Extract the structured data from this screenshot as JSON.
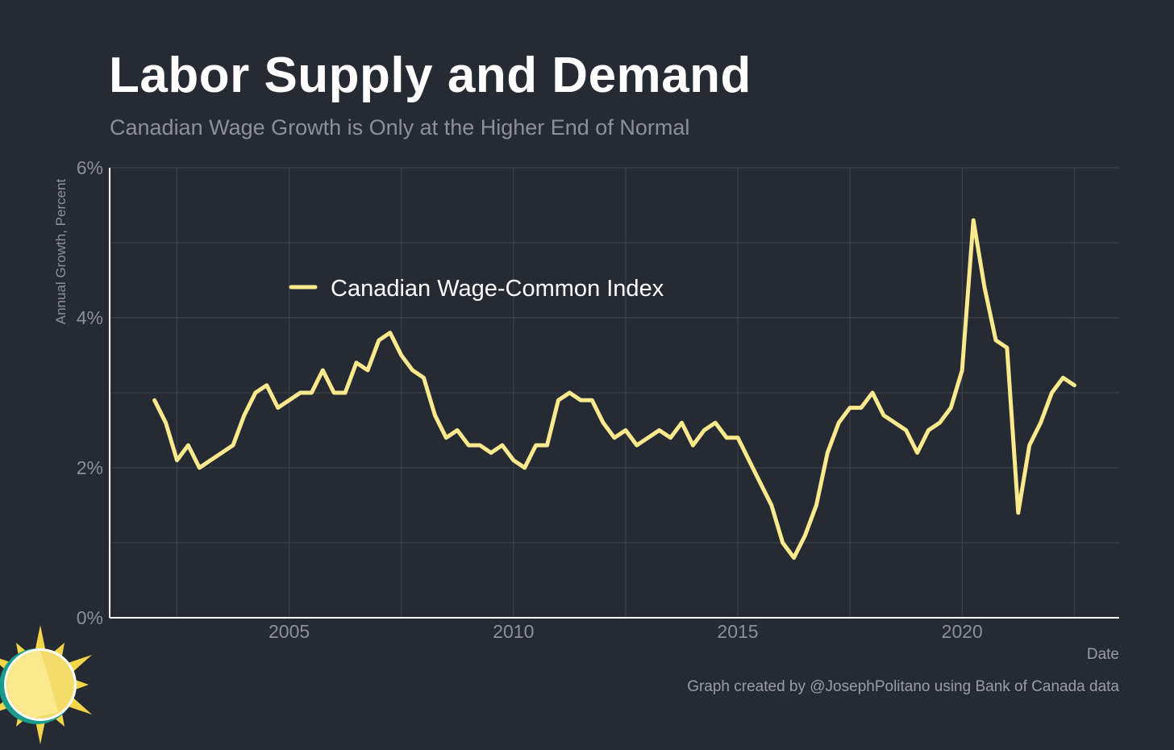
{
  "header": {
    "title": "Labor Supply and Demand",
    "subtitle": "Canadian Wage Growth is Only at the Higher End of Normal"
  },
  "footer": {
    "credit": "Graph created by @JosephPolitano using Bank of Canada data"
  },
  "colors": {
    "background": "#252a33",
    "line": "#fbe98e",
    "grid": "#3f444d",
    "axis_text": "#8d9096"
  },
  "logo": {
    "icon": "sun-logo-icon"
  },
  "chart_data": {
    "type": "line",
    "title": "Labor Supply and Demand",
    "subtitle": "Canadian Wage Growth is Only at the Higher End of Normal",
    "xlabel": "Date",
    "ylabel": "Annual Growth, Percent",
    "xlim": [
      2001.0,
      2023.5
    ],
    "ylim": [
      0,
      6
    ],
    "x_ticks": [
      2005,
      2010,
      2015,
      2020
    ],
    "x_tick_labels": [
      "2005",
      "2010",
      "2015",
      "2020"
    ],
    "y_ticks": [
      0,
      2,
      4,
      6
    ],
    "y_tick_labels": [
      "0%",
      "2%",
      "4%",
      "6%"
    ],
    "grid": true,
    "legend_position": "top-left",
    "series": [
      {
        "name": "Canadian Wage-Common Index",
        "color": "#fbe98e",
        "x": [
          2002.0,
          2002.25,
          2002.5,
          2002.75,
          2003.0,
          2003.25,
          2003.5,
          2003.75,
          2004.0,
          2004.25,
          2004.5,
          2004.75,
          2005.0,
          2005.25,
          2005.5,
          2005.75,
          2006.0,
          2006.25,
          2006.5,
          2006.75,
          2007.0,
          2007.25,
          2007.5,
          2007.75,
          2008.0,
          2008.25,
          2008.5,
          2008.75,
          2009.0,
          2009.25,
          2009.5,
          2009.75,
          2010.0,
          2010.25,
          2010.5,
          2010.75,
          2011.0,
          2011.25,
          2011.5,
          2011.75,
          2012.0,
          2012.25,
          2012.5,
          2012.75,
          2013.0,
          2013.25,
          2013.5,
          2013.75,
          2014.0,
          2014.25,
          2014.5,
          2014.75,
          2015.0,
          2015.25,
          2015.5,
          2015.75,
          2016.0,
          2016.25,
          2016.5,
          2016.75,
          2017.0,
          2017.25,
          2017.5,
          2017.75,
          2018.0,
          2018.25,
          2018.5,
          2018.75,
          2019.0,
          2019.25,
          2019.5,
          2019.75,
          2020.0,
          2020.25,
          2020.5,
          2020.75,
          2021.0,
          2021.25,
          2021.5,
          2021.75,
          2022.0,
          2022.25,
          2022.5
        ],
        "values": [
          2.9,
          2.6,
          2.1,
          2.3,
          2.0,
          2.1,
          2.2,
          2.3,
          2.7,
          3.0,
          3.1,
          2.8,
          2.9,
          3.0,
          3.0,
          3.3,
          3.0,
          3.0,
          3.4,
          3.3,
          3.7,
          3.8,
          3.5,
          3.3,
          3.2,
          2.7,
          2.4,
          2.5,
          2.3,
          2.3,
          2.2,
          2.3,
          2.1,
          2.0,
          2.3,
          2.3,
          2.9,
          3.0,
          2.9,
          2.9,
          2.6,
          2.4,
          2.5,
          2.3,
          2.4,
          2.5,
          2.4,
          2.6,
          2.3,
          2.5,
          2.6,
          2.4,
          2.4,
          2.1,
          1.8,
          1.5,
          1.0,
          0.8,
          1.1,
          1.5,
          2.2,
          2.6,
          2.8,
          2.8,
          3.0,
          2.7,
          2.6,
          2.5,
          2.2,
          2.5,
          2.6,
          2.8,
          3.3,
          5.3,
          4.4,
          3.7,
          3.6,
          1.4,
          2.3,
          2.6,
          3.0,
          3.2,
          3.1
        ]
      }
    ]
  }
}
